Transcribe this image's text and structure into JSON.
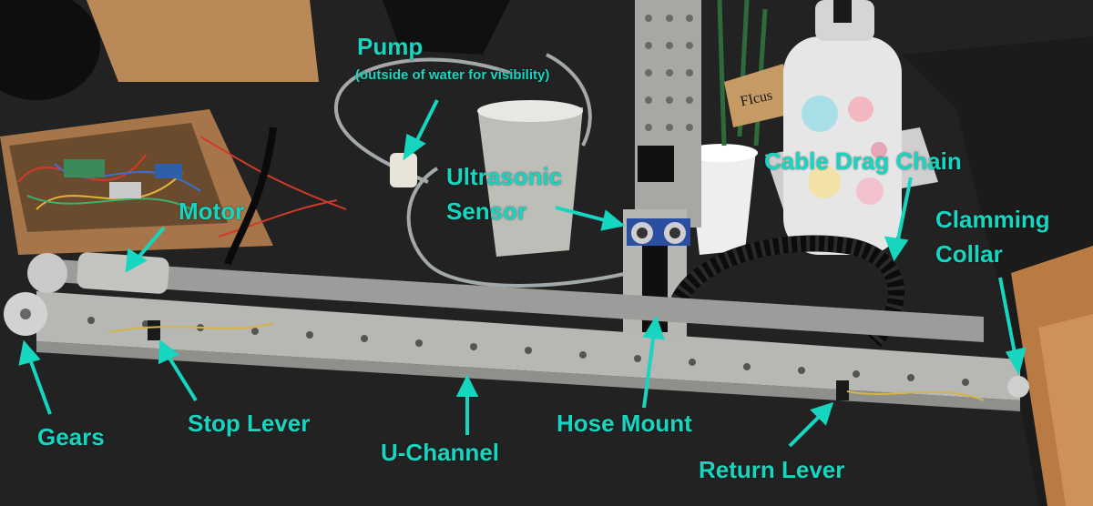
{
  "labels": {
    "pump": "Pump",
    "pump_note": "(outside of water for visibility)",
    "motor": "Motor",
    "ultrasonic_line1": "Ultrasonic",
    "ultrasonic_line2": "Sensor",
    "cable_drag_chain": "Cable Drag Chain",
    "clamming_line1": "Clamming",
    "clamming_line2": "Collar",
    "gears": "Gears",
    "stop_lever": "Stop Lever",
    "u_channel": "U-Channel",
    "hose_mount": "Hose Mount",
    "return_lever": "Return Lever"
  },
  "sign_text": "FIcus",
  "colors": {
    "label": "#16d6c0",
    "table": "#232323",
    "floor": "#c98a4e",
    "aluminum": "#a9a9a9"
  }
}
